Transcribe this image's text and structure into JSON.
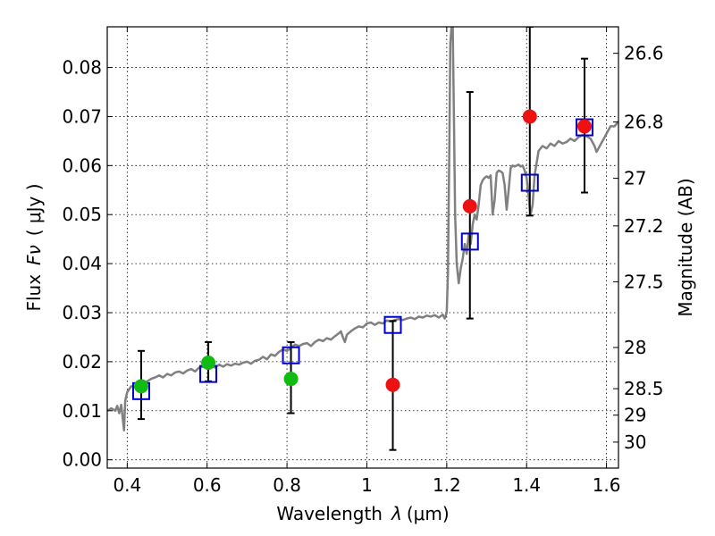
{
  "chart_data": {
    "type": "scatter",
    "xlabel": "Wavelength",
    "xlabel_symbol": "λ",
    "xlabel_unit": "(μm)",
    "ylabel": "Flux",
    "ylabel_symbol": "Fν",
    "ylabel_unit": "( μJy )",
    "y2label": "Magnitude (AB)",
    "xlim": [
      0.35,
      1.63
    ],
    "ylim": [
      -0.0017,
      0.0883
    ],
    "grid": true,
    "x_ticks": [
      0.4,
      0.6,
      0.8,
      1.0,
      1.2,
      1.4,
      1.6
    ],
    "x_tick_labels": [
      "0.4",
      "0.6",
      "0.8",
      "1",
      "1.2",
      "1.4",
      "1.6"
    ],
    "y_ticks": [
      0.0,
      0.01,
      0.02,
      0.03,
      0.04,
      0.05,
      0.06,
      0.07,
      0.08
    ],
    "y_tick_labels": [
      "0.00",
      "0.01",
      "0.02",
      "0.03",
      "0.04",
      "0.05",
      "0.06",
      "0.07",
      "0.08"
    ],
    "mag_ticks": [
      {
        "flux": 0.0829,
        "label": "26.6"
      },
      {
        "flux": 0.0689,
        "label": "26.8"
      },
      {
        "flux": 0.0574,
        "label": "27"
      },
      {
        "flux": 0.0477,
        "label": "27.2"
      },
      {
        "flux": 0.0363,
        "label": "27.5"
      },
      {
        "flux": 0.0229,
        "label": "28"
      },
      {
        "flux": 0.0145,
        "label": "28.5"
      },
      {
        "flux": 0.0091,
        "label": "29"
      },
      {
        "flux": 0.0036,
        "label": "30"
      }
    ],
    "series": [
      {
        "name": "model spectrum",
        "kind": "line",
        "color": "#808080",
        "points": [
          [
            0.35,
            0.01
          ],
          [
            0.36,
            0.0105
          ],
          [
            0.37,
            0.01
          ],
          [
            0.375,
            0.011
          ],
          [
            0.38,
            0.0095
          ],
          [
            0.385,
            0.0112
          ],
          [
            0.39,
            0.0075
          ],
          [
            0.392,
            0.006
          ],
          [
            0.395,
            0.012
          ],
          [
            0.4,
            0.0138
          ],
          [
            0.41,
            0.015
          ],
          [
            0.42,
            0.0148
          ],
          [
            0.43,
            0.015
          ],
          [
            0.44,
            0.0155
          ],
          [
            0.45,
            0.016
          ],
          [
            0.46,
            0.0165
          ],
          [
            0.47,
            0.0168
          ],
          [
            0.48,
            0.0172
          ],
          [
            0.49,
            0.0168
          ],
          [
            0.5,
            0.0175
          ],
          [
            0.51,
            0.0172
          ],
          [
            0.52,
            0.0178
          ],
          [
            0.53,
            0.018
          ],
          [
            0.54,
            0.0176
          ],
          [
            0.55,
            0.0182
          ],
          [
            0.56,
            0.0185
          ],
          [
            0.57,
            0.018
          ],
          [
            0.58,
            0.0188
          ],
          [
            0.59,
            0.019
          ],
          [
            0.6,
            0.0186
          ],
          [
            0.61,
            0.0192
          ],
          [
            0.62,
            0.0188
          ],
          [
            0.63,
            0.0194
          ],
          [
            0.64,
            0.019
          ],
          [
            0.65,
            0.0195
          ],
          [
            0.66,
            0.0192
          ],
          [
            0.67,
            0.0196
          ],
          [
            0.68,
            0.0194
          ],
          [
            0.69,
            0.0198
          ],
          [
            0.7,
            0.02
          ],
          [
            0.71,
            0.0196
          ],
          [
            0.72,
            0.0202
          ],
          [
            0.73,
            0.0204
          ],
          [
            0.74,
            0.021
          ],
          [
            0.75,
            0.0205
          ],
          [
            0.76,
            0.0215
          ],
          [
            0.77,
            0.0212
          ],
          [
            0.78,
            0.022
          ],
          [
            0.79,
            0.0225
          ],
          [
            0.8,
            0.0222
          ],
          [
            0.81,
            0.0228
          ],
          [
            0.82,
            0.0235
          ],
          [
            0.83,
            0.0232
          ],
          [
            0.84,
            0.0236
          ],
          [
            0.85,
            0.0238
          ],
          [
            0.86,
            0.0232
          ],
          [
            0.87,
            0.024
          ],
          [
            0.88,
            0.0245
          ],
          [
            0.89,
            0.0242
          ],
          [
            0.9,
            0.0248
          ],
          [
            0.91,
            0.0245
          ],
          [
            0.92,
            0.0252
          ],
          [
            0.93,
            0.0258
          ],
          [
            0.935,
            0.0262
          ],
          [
            0.94,
            0.025
          ],
          [
            0.945,
            0.024
          ],
          [
            0.95,
            0.0255
          ],
          [
            0.96,
            0.0262
          ],
          [
            0.97,
            0.0268
          ],
          [
            0.98,
            0.0272
          ],
          [
            0.99,
            0.027
          ],
          [
            1.0,
            0.0278
          ],
          [
            1.01,
            0.028
          ],
          [
            1.02,
            0.0275
          ],
          [
            1.03,
            0.028
          ],
          [
            1.04,
            0.0278
          ],
          [
            1.05,
            0.0284
          ],
          [
            1.06,
            0.0282
          ],
          [
            1.07,
            0.0285
          ],
          [
            1.08,
            0.0287
          ],
          [
            1.09,
            0.0285
          ],
          [
            1.1,
            0.0288
          ],
          [
            1.11,
            0.029
          ],
          [
            1.12,
            0.0287
          ],
          [
            1.13,
            0.0292
          ],
          [
            1.14,
            0.029
          ],
          [
            1.15,
            0.0294
          ],
          [
            1.16,
            0.0292
          ],
          [
            1.17,
            0.0295
          ],
          [
            1.18,
            0.029
          ],
          [
            1.19,
            0.0296
          ],
          [
            1.195,
            0.0288
          ],
          [
            1.2,
            0.03
          ],
          [
            1.203,
            0.038
          ],
          [
            1.206,
            0.06
          ],
          [
            1.209,
            0.085
          ],
          [
            1.212,
            0.0883
          ],
          [
            1.215,
            0.0883
          ],
          [
            1.218,
            0.07
          ],
          [
            1.221,
            0.05
          ],
          [
            1.225,
            0.04
          ],
          [
            1.23,
            0.036
          ],
          [
            1.235,
            0.039
          ],
          [
            1.24,
            0.041
          ],
          [
            1.245,
            0.044
          ],
          [
            1.25,
            0.042
          ],
          [
            1.255,
            0.046
          ],
          [
            1.26,
            0.044
          ],
          [
            1.265,
            0.048
          ],
          [
            1.27,
            0.05
          ],
          [
            1.275,
            0.049
          ],
          [
            1.28,
            0.052
          ],
          [
            1.285,
            0.056
          ],
          [
            1.29,
            0.057
          ],
          [
            1.295,
            0.0575
          ],
          [
            1.3,
            0.0578
          ],
          [
            1.305,
            0.0575
          ],
          [
            1.31,
            0.058
          ],
          [
            1.315,
            0.05
          ],
          [
            1.32,
            0.053
          ],
          [
            1.325,
            0.0585
          ],
          [
            1.33,
            0.059
          ],
          [
            1.335,
            0.0588
          ],
          [
            1.34,
            0.0585
          ],
          [
            1.345,
            0.056
          ],
          [
            1.35,
            0.051
          ],
          [
            1.355,
            0.055
          ],
          [
            1.36,
            0.0595
          ],
          [
            1.365,
            0.06
          ],
          [
            1.37,
            0.0598
          ],
          [
            1.375,
            0.06
          ],
          [
            1.38,
            0.0602
          ],
          [
            1.385,
            0.0598
          ],
          [
            1.39,
            0.06
          ],
          [
            1.395,
            0.059
          ],
          [
            1.4,
            0.0575
          ],
          [
            1.405,
            0.054
          ],
          [
            1.408,
            0.051
          ],
          [
            1.41,
            0.05
          ],
          [
            1.415,
            0.052
          ],
          [
            1.42,
            0.058
          ],
          [
            1.43,
            0.063
          ],
          [
            1.44,
            0.064
          ],
          [
            1.45,
            0.0635
          ],
          [
            1.46,
            0.0645
          ],
          [
            1.47,
            0.064
          ],
          [
            1.48,
            0.065
          ],
          [
            1.49,
            0.0645
          ],
          [
            1.5,
            0.0648
          ],
          [
            1.51,
            0.0655
          ],
          [
            1.52,
            0.065
          ],
          [
            1.53,
            0.0658
          ],
          [
            1.54,
            0.0662
          ],
          [
            1.55,
            0.066
          ],
          [
            1.56,
            0.0655
          ],
          [
            1.57,
            0.064
          ],
          [
            1.575,
            0.0628
          ],
          [
            1.58,
            0.0635
          ],
          [
            1.59,
            0.065
          ],
          [
            1.6,
            0.0665
          ],
          [
            1.61,
            0.068
          ],
          [
            1.62,
            0.068
          ],
          [
            1.63,
            0.069
          ]
        ]
      },
      {
        "name": "model photometry",
        "kind": "open-square",
        "color": "#0000cc",
        "points": [
          [
            0.435,
            0.014
          ],
          [
            0.603,
            0.0175
          ],
          [
            0.81,
            0.0213
          ],
          [
            1.065,
            0.0275
          ],
          [
            1.258,
            0.0445
          ],
          [
            1.408,
            0.0565
          ],
          [
            1.545,
            0.0678
          ]
        ]
      },
      {
        "name": "observed (red)",
        "kind": "filled-circle",
        "color": "#ee1111",
        "points": [
          [
            1.065,
            0.0153
          ],
          [
            1.258,
            0.0517
          ],
          [
            1.408,
            0.07
          ],
          [
            1.545,
            0.068
          ]
        ]
      },
      {
        "name": "observed (green)",
        "kind": "filled-circle",
        "color": "#11bb11",
        "points": [
          [
            0.435,
            0.015
          ],
          [
            0.603,
            0.0198
          ],
          [
            0.81,
            0.0165
          ]
        ]
      },
      {
        "name": "error bars",
        "kind": "errorbar",
        "color": "#000000",
        "points": [
          {
            "x": 0.435,
            "low": 0.0083,
            "high": 0.0222
          },
          {
            "x": 0.603,
            "low": 0.016,
            "high": 0.024
          },
          {
            "x": 0.81,
            "low": 0.0095,
            "high": 0.024
          },
          {
            "x": 1.065,
            "low": 0.002,
            "high": 0.0283
          },
          {
            "x": 1.258,
            "low": 0.0288,
            "high": 0.075
          },
          {
            "x": 1.408,
            "low": 0.0498,
            "high": 0.0883
          },
          {
            "x": 1.545,
            "low": 0.0545,
            "high": 0.0818
          }
        ]
      }
    ]
  }
}
